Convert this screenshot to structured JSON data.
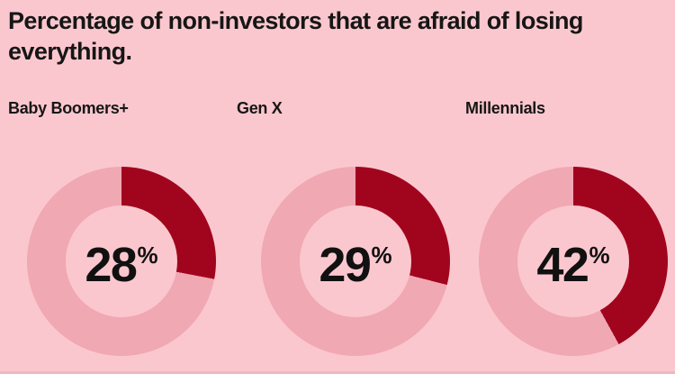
{
  "page": {
    "title": "Percentage of non-investors that are afraid of losing everything.",
    "title_lines": [
      "Percentage of non-investors that are afraid of losing",
      "everything."
    ]
  },
  "chart_data": {
    "type": "pie",
    "variant": "donut",
    "title": "Percentage of non-investors that are afraid of losing everything.",
    "categories": [
      "Baby Boomers+",
      "Gen X",
      "Millennials"
    ],
    "values": [
      28,
      29,
      42
    ],
    "unit": "%",
    "start_angle_deg": 0,
    "direction": "clockwise",
    "legend_position": "none",
    "colors": {
      "background": "#FBC7CE",
      "track": "#F0A8B3",
      "filled": "#A1051E",
      "text": "#111111"
    }
  }
}
